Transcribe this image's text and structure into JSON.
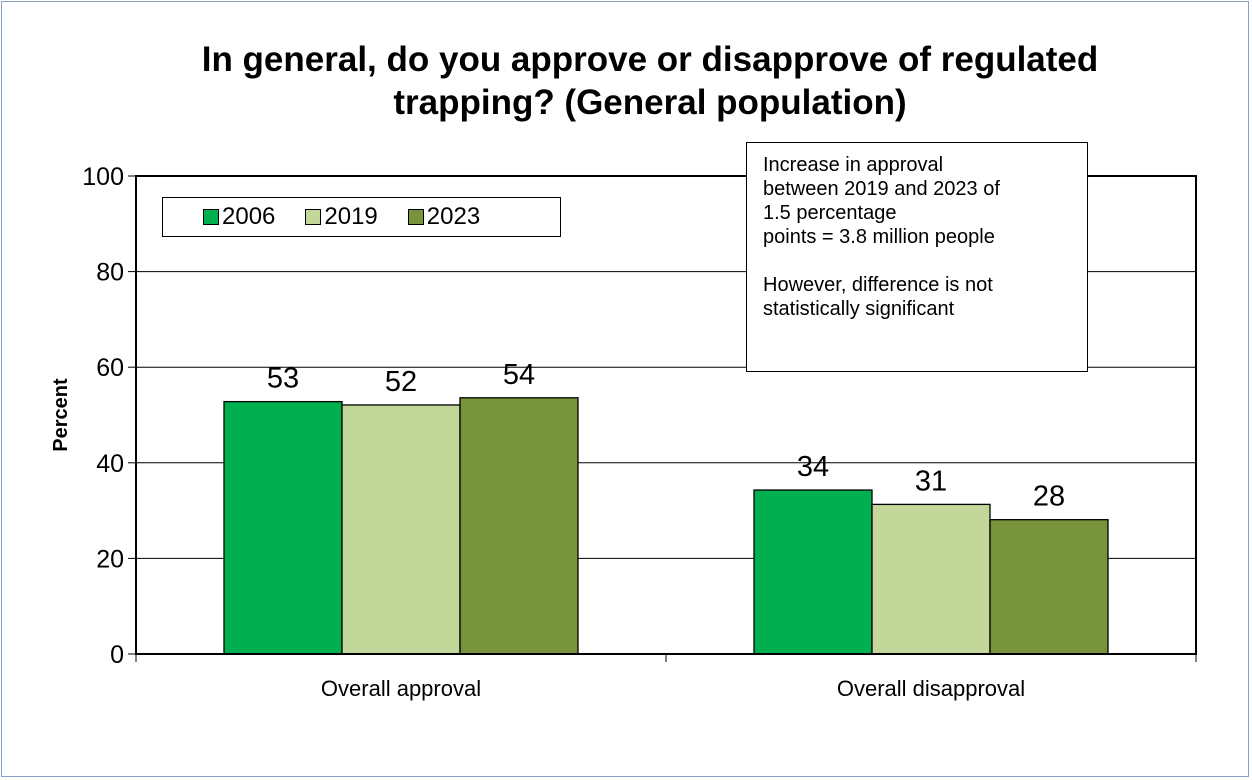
{
  "chart_data": {
    "type": "bar",
    "title": [
      "In general, do you approve or disapprove of regulated",
      "trapping? (General population)"
    ],
    "ylabel": "Percent",
    "xlabel": "",
    "ylim": [
      0,
      100
    ],
    "yticks": [
      0,
      20,
      40,
      60,
      80,
      100
    ],
    "grid": true,
    "legend_position": "top-left",
    "categories": [
      "Overall approval",
      "Overall disapproval"
    ],
    "series": [
      {
        "name": "2006",
        "color": "#00b050",
        "values": [
          53,
          34
        ],
        "value_positions": [
          52.8,
          34.3
        ]
      },
      {
        "name": "2019",
        "color": "#c4d79b",
        "values": [
          52,
          31
        ],
        "value_positions": [
          52.1,
          31.3
        ]
      },
      {
        "name": "2023",
        "color": "#77933c",
        "values": [
          54,
          28
        ],
        "value_positions": [
          53.6,
          28.1
        ]
      }
    ],
    "annotation": {
      "lines": [
        "Increase in approval",
        "between 2019 and 2023 of",
        "1.5 percentage",
        "points = 3.8 million people"
      ],
      "note_lines": [
        "However, difference is not",
        "statistically significant"
      ]
    }
  }
}
